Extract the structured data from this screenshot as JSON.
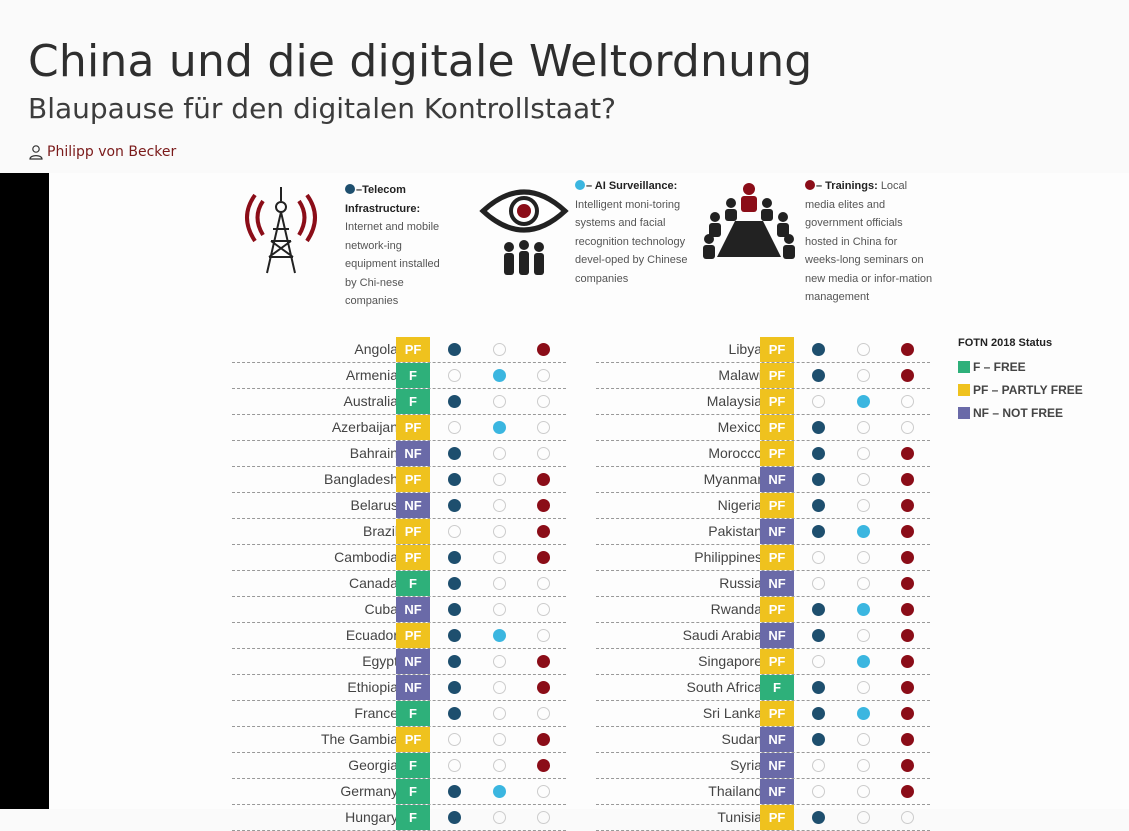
{
  "article": {
    "title": "China und die digitale Weltordnung",
    "subtitle": "Blaupause für den digitalen Kontrollstaat?",
    "author": "Philipp von Becker"
  },
  "legend": {
    "telecom": {
      "head": "–Telecom Infrastructure:",
      "body": "Internet and mobile network-ing equipment installed by Chi-nese companies",
      "icon": "radio-tower-icon"
    },
    "ai": {
      "head": "– AI Surveillance:",
      "body": "Intelligent moni-toring systems and facial recognition technology devel-oped by Chinese companies",
      "icon": "eye-people-icon"
    },
    "training": {
      "head": "– Trainings:",
      "body": "Local media elites and government officials hosted in China for weeks-long seminars on new media or infor-mation management",
      "icon": "group-meeting-icon"
    }
  },
  "status_legend": {
    "title": "FOTN 2018 Status",
    "items": [
      {
        "code": "F",
        "label": "F – FREE",
        "color": "#2eb07a"
      },
      {
        "code": "PF",
        "label": "PF – PARTLY FREE",
        "color": "#efc21e"
      },
      {
        "code": "NF",
        "label": "NF – NOT FREE",
        "color": "#6a6aa8"
      }
    ]
  },
  "colors": {
    "telecom": "#1e4f6e",
    "ai": "#3bb6e0",
    "training": "#8b0d18"
  },
  "left_rows": [
    {
      "country": "Angola",
      "status": "PF",
      "telecom": true,
      "ai": false,
      "training": true
    },
    {
      "country": "Armenia",
      "status": "F",
      "telecom": false,
      "ai": true,
      "training": false
    },
    {
      "country": "Australia",
      "status": "F",
      "telecom": true,
      "ai": false,
      "training": false
    },
    {
      "country": "Azerbaijan",
      "status": "PF",
      "telecom": false,
      "ai": true,
      "training": false
    },
    {
      "country": "Bahrain",
      "status": "NF",
      "telecom": true,
      "ai": false,
      "training": false
    },
    {
      "country": "Bangladesh",
      "status": "PF",
      "telecom": true,
      "ai": false,
      "training": true
    },
    {
      "country": "Belarus",
      "status": "NF",
      "telecom": true,
      "ai": false,
      "training": true
    },
    {
      "country": "Brazil",
      "status": "PF",
      "telecom": false,
      "ai": false,
      "training": true
    },
    {
      "country": "Cambodia",
      "status": "PF",
      "telecom": true,
      "ai": false,
      "training": true
    },
    {
      "country": "Canada",
      "status": "F",
      "telecom": true,
      "ai": false,
      "training": false
    },
    {
      "country": "Cuba",
      "status": "NF",
      "telecom": true,
      "ai": false,
      "training": false
    },
    {
      "country": "Ecuador",
      "status": "PF",
      "telecom": true,
      "ai": true,
      "training": false
    },
    {
      "country": "Egypt",
      "status": "NF",
      "telecom": true,
      "ai": false,
      "training": true
    },
    {
      "country": "Ethiopia",
      "status": "NF",
      "telecom": true,
      "ai": false,
      "training": true
    },
    {
      "country": "France",
      "status": "F",
      "telecom": true,
      "ai": false,
      "training": false
    },
    {
      "country": "The Gambia",
      "status": "PF",
      "telecom": false,
      "ai": false,
      "training": true
    },
    {
      "country": "Georgia",
      "status": "F",
      "telecom": false,
      "ai": false,
      "training": true
    },
    {
      "country": "Germany",
      "status": "F",
      "telecom": true,
      "ai": true,
      "training": false
    },
    {
      "country": "Hungary",
      "status": "F",
      "telecom": true,
      "ai": false,
      "training": false
    }
  ],
  "right_rows": [
    {
      "country": "Libya",
      "status": "PF",
      "telecom": true,
      "ai": false,
      "training": true
    },
    {
      "country": "Malawi",
      "status": "PF",
      "telecom": true,
      "ai": false,
      "training": true
    },
    {
      "country": "Malaysia",
      "status": "PF",
      "telecom": false,
      "ai": true,
      "training": false
    },
    {
      "country": "Mexico",
      "status": "PF",
      "telecom": true,
      "ai": false,
      "training": false
    },
    {
      "country": "Morocco",
      "status": "PF",
      "telecom": true,
      "ai": false,
      "training": true
    },
    {
      "country": "Myanmar",
      "status": "NF",
      "telecom": true,
      "ai": false,
      "training": true
    },
    {
      "country": "Nigeria",
      "status": "PF",
      "telecom": true,
      "ai": false,
      "training": true
    },
    {
      "country": "Pakistan",
      "status": "NF",
      "telecom": true,
      "ai": true,
      "training": true
    },
    {
      "country": "Philippines",
      "status": "PF",
      "telecom": false,
      "ai": false,
      "training": true
    },
    {
      "country": "Russia",
      "status": "NF",
      "telecom": false,
      "ai": false,
      "training": true
    },
    {
      "country": "Rwanda",
      "status": "PF",
      "telecom": true,
      "ai": true,
      "training": true
    },
    {
      "country": "Saudi Arabia",
      "status": "NF",
      "telecom": true,
      "ai": false,
      "training": true
    },
    {
      "country": "Singapore",
      "status": "PF",
      "telecom": false,
      "ai": true,
      "training": true
    },
    {
      "country": "South Africa",
      "status": "F",
      "telecom": true,
      "ai": false,
      "training": true
    },
    {
      "country": "Sri Lanka",
      "status": "PF",
      "telecom": true,
      "ai": true,
      "training": true
    },
    {
      "country": "Sudan",
      "status": "NF",
      "telecom": true,
      "ai": false,
      "training": true
    },
    {
      "country": "Syria",
      "status": "NF",
      "telecom": false,
      "ai": false,
      "training": true
    },
    {
      "country": "Thailand",
      "status": "NF",
      "telecom": false,
      "ai": false,
      "training": true
    },
    {
      "country": "Tunisia",
      "status": "PF",
      "telecom": true,
      "ai": false,
      "training": false
    }
  ]
}
